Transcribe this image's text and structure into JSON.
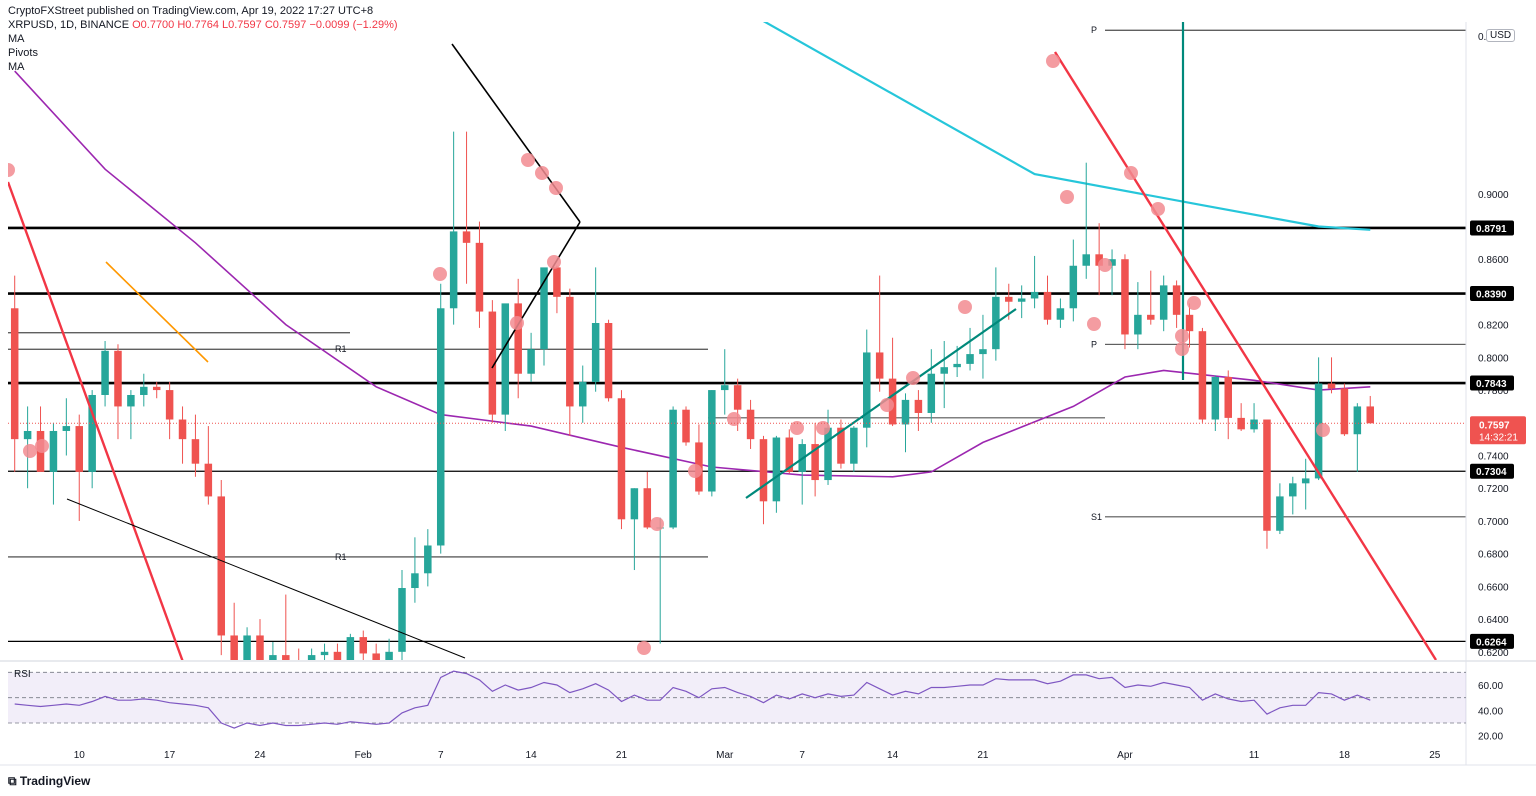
{
  "header": {
    "published": "CryptoFXStreet published on TradingView.com, Apr 19, 2022 17:27 UTC+8",
    "symbol": "XRPUSD, 1D, BINANCE",
    "ohlc": "O0.7700  H0.7764  L0.7597  C0.7597  −0.0099 (−1.29%)",
    "indicator1": "MA",
    "indicator2": "Pivots",
    "indicator3": "MA"
  },
  "currency_button": "USD",
  "footer_brand": "TradingView",
  "colors": {
    "up": "#26a69a",
    "down": "#ef5350",
    "ma50": "#9c27b0",
    "ma200": "#26c6da",
    "trend_red": "#f23645",
    "trend_teal": "#00897b",
    "rsi": "#7e57c2"
  },
  "chart_data": {
    "type": "table",
    "title": "",
    "y_axis": {
      "min": 0.615,
      "max": 1.005,
      "ticks": [
        0.62,
        0.64,
        0.66,
        0.68,
        0.7,
        0.72,
        0.74,
        0.76,
        0.78,
        0.8,
        0.82,
        0.84,
        0.86,
        0.88,
        0.9
      ],
      "tick_labels": [
        "0.6200",
        "0.6400",
        "0.6600",
        "0.6800",
        "0.7000",
        "0.7200",
        "0.7400",
        "0.7600",
        "0.7800",
        "0.8000",
        "0.8200",
        "0.8400",
        "0.8600",
        "0.8800",
        "0.9000"
      ],
      "top_label": "0."
    },
    "x_axis": {
      "labels": [
        "10",
        "17",
        "24",
        "Feb",
        "7",
        "14",
        "21",
        "Mar",
        "7",
        "14",
        "21",
        "Apr",
        "11",
        "18",
        "25"
      ]
    },
    "price_labels": [
      {
        "text": "0.8791",
        "value": 0.8791
      },
      {
        "text": "0.8390",
        "value": 0.839
      },
      {
        "text": "0.7843",
        "value": 0.7843
      },
      {
        "text": "0.7304",
        "value": 0.7304
      },
      {
        "text": "0.6264",
        "value": 0.6264
      }
    ],
    "last_price": {
      "text": "0.7597",
      "countdown": "14:32:21",
      "value": 0.7597
    },
    "pivot_labels": [
      "R1",
      "R1",
      "P",
      "P",
      "S1"
    ],
    "columns": [
      "date",
      "open",
      "high",
      "low",
      "close"
    ],
    "rows": [
      [
        "2022-01-05",
        0.83,
        0.85,
        0.73,
        0.75
      ],
      [
        "2022-01-06",
        0.75,
        0.77,
        0.72,
        0.755
      ],
      [
        "2022-01-07",
        0.755,
        0.77,
        0.73,
        0.73
      ],
      [
        "2022-01-08",
        0.73,
        0.76,
        0.71,
        0.755
      ],
      [
        "2022-01-09",
        0.755,
        0.775,
        0.74,
        0.758
      ],
      [
        "2022-01-10",
        0.758,
        0.765,
        0.7,
        0.73
      ],
      [
        "2022-01-11",
        0.73,
        0.78,
        0.72,
        0.777
      ],
      [
        "2022-01-12",
        0.777,
        0.81,
        0.77,
        0.804
      ],
      [
        "2022-01-13",
        0.804,
        0.808,
        0.75,
        0.77
      ],
      [
        "2022-01-14",
        0.77,
        0.78,
        0.75,
        0.777
      ],
      [
        "2022-01-15",
        0.777,
        0.79,
        0.77,
        0.782
      ],
      [
        "2022-01-16",
        0.782,
        0.785,
        0.775,
        0.78
      ],
      [
        "2022-01-17",
        0.78,
        0.785,
        0.75,
        0.762
      ],
      [
        "2022-01-18",
        0.762,
        0.77,
        0.735,
        0.75
      ],
      [
        "2022-01-19",
        0.75,
        0.765,
        0.727,
        0.735
      ],
      [
        "2022-01-20",
        0.735,
        0.758,
        0.71,
        0.715
      ],
      [
        "2022-01-21",
        0.715,
        0.725,
        0.618,
        0.63
      ],
      [
        "2022-01-22",
        0.63,
        0.65,
        0.58,
        0.6
      ],
      [
        "2022-01-23",
        0.6,
        0.635,
        0.59,
        0.63
      ],
      [
        "2022-01-24",
        0.63,
        0.64,
        0.57,
        0.61
      ],
      [
        "2022-01-25",
        0.61,
        0.626,
        0.605,
        0.618
      ],
      [
        "2022-01-26",
        0.618,
        0.655,
        0.605,
        0.615
      ],
      [
        "2022-01-27",
        0.615,
        0.622,
        0.595,
        0.6
      ],
      [
        "2022-01-28",
        0.6,
        0.622,
        0.6,
        0.618
      ],
      [
        "2022-01-29",
        0.618,
        0.625,
        0.61,
        0.62
      ],
      [
        "2022-01-30",
        0.62,
        0.625,
        0.605,
        0.61
      ],
      [
        "2022-01-31",
        0.61,
        0.631,
        0.605,
        0.629
      ],
      [
        "2022-02-01",
        0.629,
        0.633,
        0.615,
        0.619
      ],
      [
        "2022-02-02",
        0.619,
        0.625,
        0.605,
        0.615
      ],
      [
        "2022-02-03",
        0.615,
        0.628,
        0.6,
        0.62
      ],
      [
        "2022-02-04",
        0.62,
        0.67,
        0.615,
        0.659
      ],
      [
        "2022-02-05",
        0.659,
        0.69,
        0.65,
        0.668
      ],
      [
        "2022-02-06",
        0.668,
        0.695,
        0.66,
        0.685
      ],
      [
        "2022-02-07",
        0.685,
        0.845,
        0.68,
        0.83
      ],
      [
        "2022-02-08",
        0.83,
        0.938,
        0.82,
        0.877
      ],
      [
        "2022-02-09",
        0.877,
        0.938,
        0.845,
        0.87
      ],
      [
        "2022-02-10",
        0.87,
        0.883,
        0.818,
        0.828
      ],
      [
        "2022-02-11",
        0.828,
        0.835,
        0.76,
        0.765
      ],
      [
        "2022-02-12",
        0.765,
        0.82,
        0.755,
        0.833
      ],
      [
        "2022-02-13",
        0.833,
        0.848,
        0.775,
        0.79
      ],
      [
        "2022-02-14",
        0.79,
        0.815,
        0.785,
        0.805
      ],
      [
        "2022-02-15",
        0.805,
        0.845,
        0.795,
        0.855
      ],
      [
        "2022-02-16",
        0.855,
        0.856,
        0.827,
        0.837
      ],
      [
        "2022-02-17",
        0.837,
        0.842,
        0.752,
        0.77
      ],
      [
        "2022-02-18",
        0.77,
        0.795,
        0.76,
        0.785
      ],
      [
        "2022-02-19",
        0.785,
        0.855,
        0.779,
        0.821
      ],
      [
        "2022-02-20",
        0.821,
        0.823,
        0.773,
        0.775
      ],
      [
        "2022-02-21",
        0.775,
        0.78,
        0.695,
        0.701
      ],
      [
        "2022-02-22",
        0.701,
        0.72,
        0.67,
        0.72
      ],
      [
        "2022-02-23",
        0.72,
        0.73,
        0.695,
        0.696
      ],
      [
        "2022-02-24",
        0.696,
        0.702,
        0.625,
        0.696
      ],
      [
        "2022-02-25",
        0.696,
        0.77,
        0.695,
        0.768
      ],
      [
        "2022-02-26",
        0.768,
        0.77,
        0.746,
        0.748
      ],
      [
        "2022-02-27",
        0.748,
        0.759,
        0.716,
        0.718
      ],
      [
        "2022-02-28",
        0.718,
        0.78,
        0.715,
        0.78
      ],
      [
        "2022-03-01",
        0.78,
        0.805,
        0.765,
        0.783
      ],
      [
        "2022-03-02",
        0.783,
        0.787,
        0.755,
        0.768
      ],
      [
        "2022-03-03",
        0.768,
        0.774,
        0.744,
        0.75
      ],
      [
        "2022-03-04",
        0.75,
        0.752,
        0.698,
        0.712
      ],
      [
        "2022-03-05",
        0.712,
        0.752,
        0.705,
        0.751
      ],
      [
        "2022-03-06",
        0.751,
        0.756,
        0.729,
        0.73
      ],
      [
        "2022-03-07",
        0.73,
        0.75,
        0.71,
        0.747
      ],
      [
        "2022-03-08",
        0.747,
        0.76,
        0.715,
        0.725
      ],
      [
        "2022-03-09",
        0.725,
        0.768,
        0.722,
        0.757
      ],
      [
        "2022-03-10",
        0.757,
        0.762,
        0.732,
        0.735
      ],
      [
        "2022-03-11",
        0.735,
        0.758,
        0.73,
        0.757
      ],
      [
        "2022-03-12",
        0.757,
        0.817,
        0.745,
        0.803
      ],
      [
        "2022-03-13",
        0.803,
        0.85,
        0.779,
        0.787
      ],
      [
        "2022-03-14",
        0.787,
        0.812,
        0.758,
        0.759
      ],
      [
        "2022-03-15",
        0.759,
        0.778,
        0.742,
        0.774
      ],
      [
        "2022-03-16",
        0.774,
        0.78,
        0.755,
        0.766
      ],
      [
        "2022-03-17",
        0.766,
        0.805,
        0.76,
        0.79
      ],
      [
        "2022-03-18",
        0.79,
        0.81,
        0.769,
        0.794
      ],
      [
        "2022-03-19",
        0.794,
        0.807,
        0.788,
        0.796
      ],
      [
        "2022-03-20",
        0.796,
        0.818,
        0.792,
        0.802
      ],
      [
        "2022-03-21",
        0.802,
        0.826,
        0.787,
        0.805
      ],
      [
        "2022-03-22",
        0.805,
        0.855,
        0.798,
        0.837
      ],
      [
        "2022-03-23",
        0.837,
        0.845,
        0.823,
        0.834
      ],
      [
        "2022-03-24",
        0.834,
        0.844,
        0.824,
        0.836
      ],
      [
        "2022-03-25",
        0.836,
        0.862,
        0.83,
        0.84
      ],
      [
        "2022-03-26",
        0.84,
        0.85,
        0.82,
        0.823
      ],
      [
        "2022-03-27",
        0.823,
        0.836,
        0.818,
        0.83
      ],
      [
        "2022-03-28",
        0.83,
        0.872,
        0.822,
        0.856
      ],
      [
        "2022-03-29",
        0.856,
        0.919,
        0.848,
        0.863
      ],
      [
        "2022-03-30",
        0.863,
        0.882,
        0.838,
        0.856
      ],
      [
        "2022-03-31",
        0.856,
        0.866,
        0.838,
        0.86
      ],
      [
        "2022-04-01",
        0.86,
        0.863,
        0.805,
        0.814
      ],
      [
        "2022-04-02",
        0.814,
        0.846,
        0.805,
        0.826
      ],
      [
        "2022-04-03",
        0.826,
        0.853,
        0.82,
        0.823
      ],
      [
        "2022-04-04",
        0.823,
        0.85,
        0.816,
        0.844
      ],
      [
        "2022-04-05",
        0.844,
        0.847,
        0.818,
        0.826
      ],
      [
        "2022-04-06",
        0.826,
        0.833,
        0.806,
        0.816
      ],
      [
        "2022-04-07",
        0.816,
        0.818,
        0.76,
        0.762
      ],
      [
        "2022-04-08",
        0.762,
        0.789,
        0.755,
        0.788
      ],
      [
        "2022-04-09",
        0.788,
        0.792,
        0.75,
        0.763
      ],
      [
        "2022-04-10",
        0.763,
        0.772,
        0.755,
        0.756
      ],
      [
        "2022-04-11",
        0.756,
        0.772,
        0.754,
        0.762
      ],
      [
        "2022-04-12",
        0.762,
        0.76,
        0.683,
        0.694
      ],
      [
        "2022-04-13",
        0.694,
        0.723,
        0.692,
        0.715
      ],
      [
        "2022-04-14",
        0.715,
        0.727,
        0.704,
        0.723
      ],
      [
        "2022-04-15",
        0.723,
        0.738,
        0.707,
        0.726
      ],
      [
        "2022-04-16",
        0.726,
        0.8,
        0.725,
        0.784
      ],
      [
        "2022-04-17",
        0.784,
        0.8,
        0.778,
        0.781
      ],
      [
        "2022-04-18",
        0.781,
        0.784,
        0.752,
        0.753
      ],
      [
        "2022-04-19",
        0.753,
        0.772,
        0.73,
        0.77
      ],
      [
        "2022-04-20",
        0.77,
        0.7764,
        0.7597,
        0.7597
      ]
    ],
    "ma50": [
      [
        "2022-01-05",
        0.975
      ],
      [
        "2022-01-12",
        0.915
      ],
      [
        "2022-01-19",
        0.87
      ],
      [
        "2022-01-26",
        0.82
      ],
      [
        "2022-02-02",
        0.782
      ],
      [
        "2022-02-07",
        0.765
      ],
      [
        "2022-02-10",
        0.762
      ],
      [
        "2022-02-14",
        0.758
      ],
      [
        "2022-02-21",
        0.745
      ],
      [
        "2022-02-28",
        0.733
      ],
      [
        "2022-03-07",
        0.728
      ],
      [
        "2022-03-14",
        0.727
      ],
      [
        "2022-03-17",
        0.73
      ],
      [
        "2022-03-21",
        0.748
      ],
      [
        "2022-03-28",
        0.77
      ],
      [
        "2022-04-01",
        0.788
      ],
      [
        "2022-04-04",
        0.792
      ],
      [
        "2022-04-11",
        0.786
      ],
      [
        "2022-04-16",
        0.78
      ],
      [
        "2022-04-20",
        0.782
      ]
    ],
    "ma200": [
      [
        "2022-03-03",
        1.01
      ],
      [
        "2022-03-25",
        0.912
      ],
      [
        "2022-04-07",
        0.893
      ],
      [
        "2022-04-16",
        0.88
      ],
      [
        "2022-04-20",
        0.878
      ]
    ],
    "rsi": {
      "levels": [
        70,
        50,
        30
      ],
      "tick_labels": [
        "60.00",
        "40.00",
        "20.00"
      ],
      "values": [
        45,
        44,
        43,
        44,
        45,
        44,
        47,
        51,
        48,
        48,
        49,
        48,
        46,
        45,
        44,
        42,
        30,
        26,
        30,
        28,
        30,
        28,
        28,
        29,
        30,
        29,
        31,
        30,
        29,
        30,
        38,
        42,
        44,
        66,
        71,
        69,
        64,
        55,
        60,
        56,
        58,
        62,
        60,
        54,
        57,
        61,
        56,
        47,
        52,
        48,
        48,
        58,
        55,
        50,
        57,
        58,
        54,
        51,
        46,
        52,
        49,
        53,
        50,
        53,
        51,
        52,
        62,
        57,
        52,
        55,
        53,
        58,
        58,
        59,
        60,
        60,
        65,
        64,
        64,
        64,
        61,
        63,
        68,
        68,
        65,
        66,
        58,
        60,
        59,
        62,
        60,
        58,
        48,
        53,
        49,
        47,
        48,
        37,
        42,
        44,
        44,
        54,
        53,
        48,
        52,
        48
      ]
    }
  }
}
